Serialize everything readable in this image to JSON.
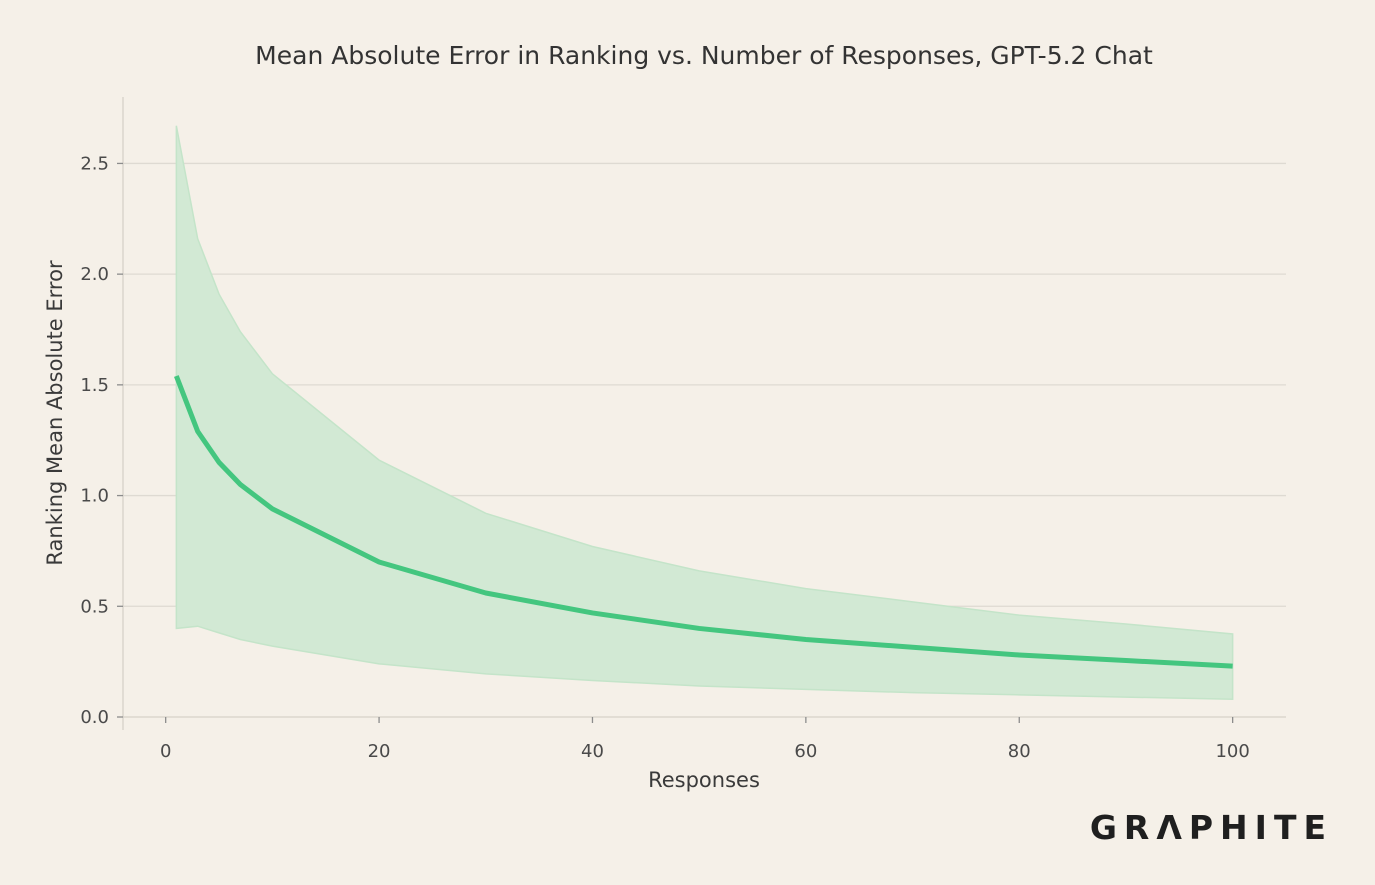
{
  "chart_data": {
    "type": "line",
    "title": "Mean Absolute Error in Ranking vs. Number of Responses, GPT-5.2 Chat",
    "xlabel": "Responses",
    "ylabel": "Ranking Mean Absolute Error",
    "xlim": [
      -4,
      105
    ],
    "ylim": [
      0,
      2.8
    ],
    "xticks": [
      0,
      20,
      40,
      60,
      80,
      100
    ],
    "xtick_labels": [
      "0",
      "20",
      "40",
      "60",
      "80",
      "100"
    ],
    "yticks": [
      0.0,
      0.5,
      1.0,
      1.5,
      2.0,
      2.5
    ],
    "ytick_labels": [
      "0.0",
      "0.5",
      "1.0",
      "1.5",
      "2.0",
      "2.5"
    ],
    "grid": "horizontal",
    "series": [
      {
        "name": "Mean absolute error",
        "color": "#44c67f",
        "x": [
          1,
          3,
          5,
          7,
          10,
          20,
          30,
          40,
          50,
          60,
          70,
          80,
          90,
          100
        ],
        "values": [
          1.54,
          1.29,
          1.15,
          1.05,
          0.94,
          0.7,
          0.56,
          0.47,
          0.4,
          0.35,
          0.315,
          0.28,
          0.255,
          0.23
        ],
        "band_upper": [
          2.67,
          2.16,
          1.91,
          1.74,
          1.55,
          1.16,
          0.92,
          0.77,
          0.66,
          0.58,
          0.52,
          0.46,
          0.42,
          0.375
        ],
        "band_lower": [
          0.4,
          0.41,
          0.38,
          0.35,
          0.32,
          0.24,
          0.195,
          0.165,
          0.14,
          0.125,
          0.11,
          0.1,
          0.09,
          0.08
        ],
        "band_color": "#d2e9d4"
      }
    ]
  },
  "branding": {
    "logo_text": "GRΛPHITE"
  }
}
